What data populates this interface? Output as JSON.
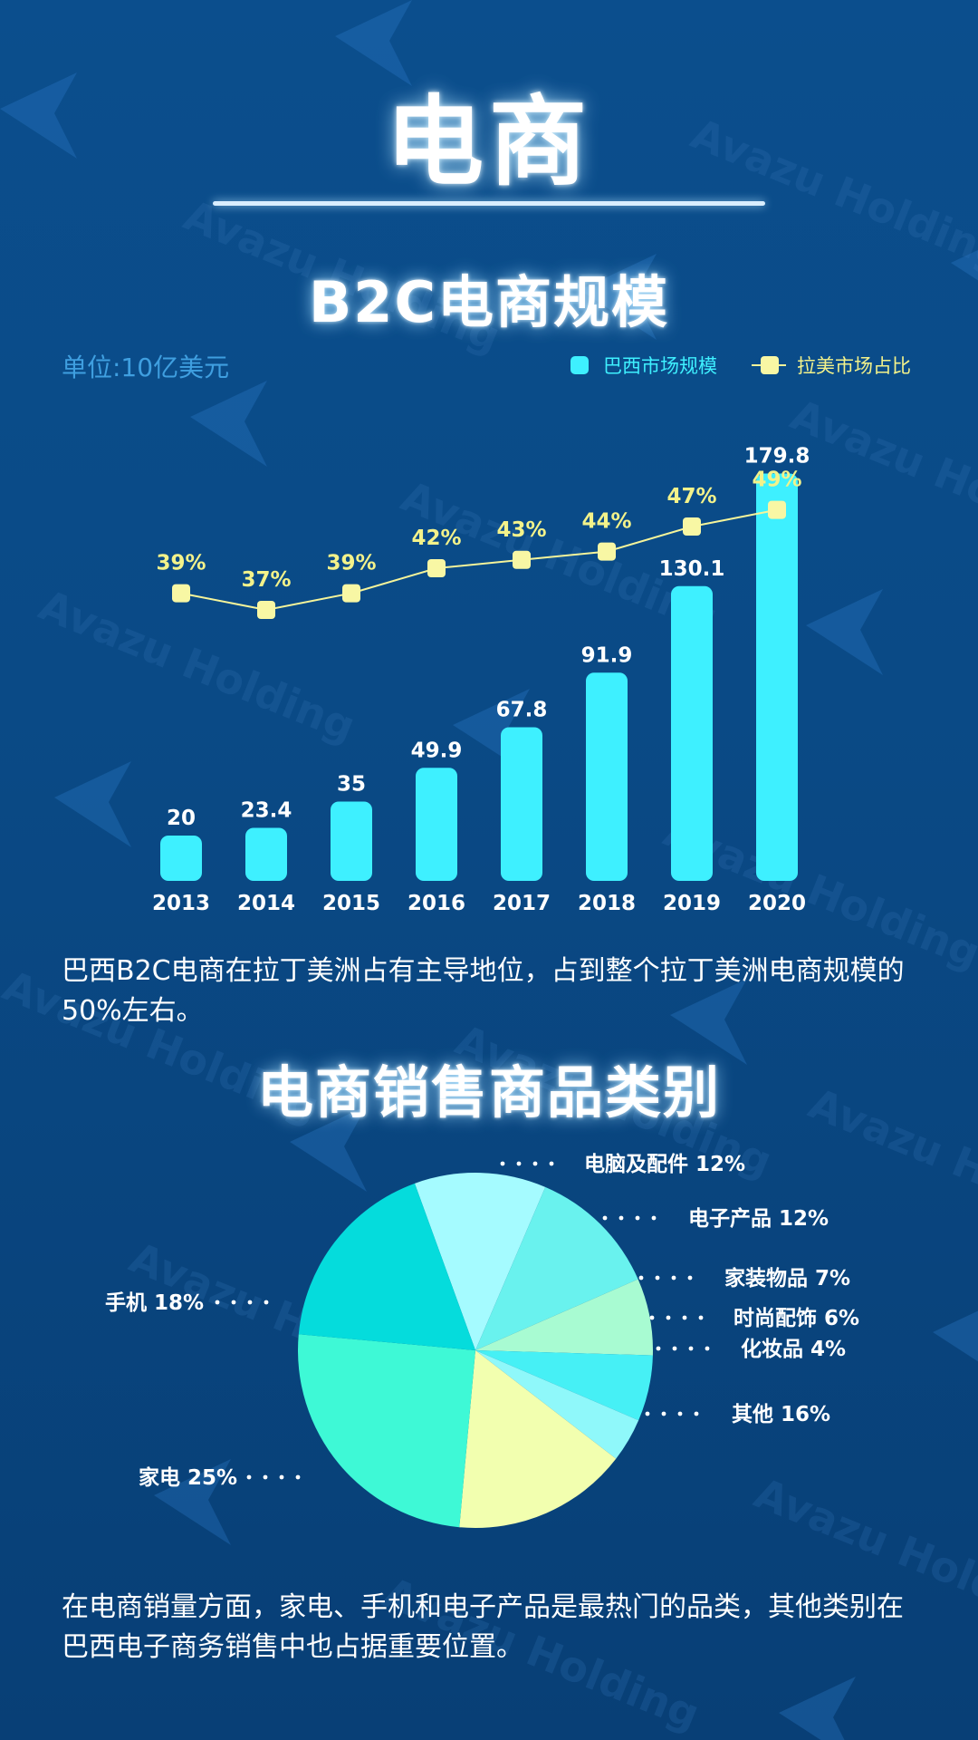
{
  "title": "电商",
  "watermark": "Avazu Holding",
  "section1_title": "B2C电商规模",
  "section2_title": "电商销售商品类别",
  "para1": "巴西B2C电商在拉丁美洲占有主导地位，占到整个拉丁美洲电商规模的50%左右。",
  "para2": "在电商销量方面，家电、手机和电子产品是最热门的品类，其他类别在巴西电子商务销售中也占据重要位置。",
  "colors": {
    "bar": "#3ef0ff",
    "line": "#f5f49a",
    "marker": "#f8f7a4",
    "line_label": "#f3f28a"
  },
  "chart_data": [
    {
      "type": "bar",
      "unit_label": "单位:10亿美元",
      "categories": [
        "2013",
        "2014",
        "2015",
        "2016",
        "2017",
        "2018",
        "2019",
        "2020"
      ],
      "series": [
        {
          "name": "巴西市场规模",
          "type": "bar",
          "values": [
            20,
            23.4,
            35,
            49.9,
            67.8,
            91.9,
            130.1,
            179.8
          ],
          "value_labels": [
            "20",
            "23.4",
            "35",
            "49.9",
            "67.8",
            "91.9",
            "130.1",
            "179.8"
          ]
        },
        {
          "name": "拉美市场占比",
          "type": "line",
          "values": [
            39,
            37,
            39,
            42,
            43,
            44,
            47,
            49
          ],
          "value_labels": [
            "39%",
            "37%",
            "39%",
            "42%",
            "43%",
            "44%",
            "47%",
            "49%"
          ]
        }
      ],
      "legend_position": "top-right",
      "grid": false
    },
    {
      "type": "pie",
      "slices": [
        {
          "label": "电脑及配件",
          "value": 12,
          "display": "电脑及配件 12%",
          "color": "#a5fbff"
        },
        {
          "label": "电子产品",
          "value": 12,
          "display": "电子产品 12%",
          "color": "#69f2ee"
        },
        {
          "label": "家装物品",
          "value": 7,
          "display": "家装物品 7%",
          "color": "#a8fbd2"
        },
        {
          "label": "时尚配饰",
          "value": 6,
          "display": "时尚配饰 6%",
          "color": "#46f0f5"
        },
        {
          "label": "化妆品",
          "value": 4,
          "display": "化妆品 4%",
          "color": "#8ff8fa"
        },
        {
          "label": "其他",
          "value": 16,
          "display": "其他 16%",
          "color": "#f2ffaf"
        },
        {
          "label": "家电",
          "value": 25,
          "display": "家电 25%",
          "color": "#3ef9d6"
        },
        {
          "label": "手机",
          "value": 18,
          "display": "手机 18%",
          "color": "#05dcdc"
        }
      ]
    }
  ]
}
